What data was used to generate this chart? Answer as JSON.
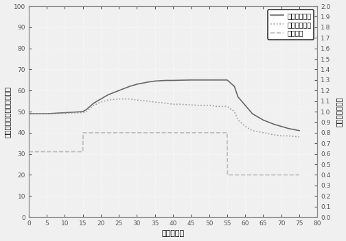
{
  "title": "",
  "xlabel": "时间（分）",
  "ylabel_left": "变压器绕组温度（摄氏度）",
  "ylabel_right": "负载系数变化率",
  "xlim": [
    0,
    80
  ],
  "ylim_left": [
    0,
    100
  ],
  "ylim_right": [
    0.0,
    2.0
  ],
  "xticks": [
    0,
    5,
    10,
    15,
    20,
    25,
    30,
    35,
    40,
    45,
    50,
    55,
    60,
    65,
    70,
    75,
    80
  ],
  "yticks_left": [
    0,
    10,
    20,
    30,
    40,
    50,
    60,
    70,
    80,
    90,
    100
  ],
  "yticks_right": [
    0.0,
    0.1,
    0.2,
    0.3,
    0.4,
    0.5,
    0.6,
    0.7,
    0.8,
    0.9,
    1.0,
    1.1,
    1.2,
    1.3,
    1.4,
    1.5,
    1.6,
    1.7,
    1.8,
    1.9,
    2.0
  ],
  "legend": [
    "传统控制方式",
    "新的控制方式",
    "负载系数"
  ],
  "line_traditional_x": [
    0,
    5,
    10,
    15,
    16,
    17,
    18,
    20,
    22,
    25,
    28,
    30,
    33,
    35,
    38,
    40,
    42,
    45,
    47,
    50,
    52,
    55,
    57,
    58,
    60,
    62,
    65,
    68,
    70,
    72,
    75
  ],
  "line_traditional_y": [
    49,
    49,
    49.5,
    50,
    51,
    52.5,
    54,
    56,
    58,
    60,
    62,
    63,
    64,
    64.5,
    64.8,
    64.8,
    64.9,
    65,
    65,
    65,
    65,
    65,
    62,
    57,
    53,
    49,
    46,
    44,
    43,
    42,
    41
  ],
  "line_new_x": [
    0,
    5,
    10,
    15,
    16,
    17,
    18,
    20,
    22,
    25,
    28,
    30,
    33,
    35,
    38,
    40,
    42,
    45,
    47,
    50,
    52,
    55,
    57,
    58,
    60,
    62,
    65,
    68,
    70,
    72,
    75
  ],
  "line_new_y": [
    49,
    49,
    49.2,
    49.5,
    50,
    51.5,
    53,
    54.5,
    55.5,
    56,
    56,
    55.5,
    55,
    54.5,
    54,
    53.5,
    53.5,
    53.2,
    53,
    53,
    52.5,
    52.5,
    50,
    46,
    43,
    41,
    40,
    39,
    38.5,
    38.5,
    38
  ],
  "line_load_x": [
    0,
    14.9,
    15.0,
    15.1,
    54.9,
    55.0,
    55.1,
    75
  ],
  "line_load_y": [
    31,
    31,
    31,
    40,
    40,
    40,
    20,
    20
  ],
  "color_traditional": "#666666",
  "color_new": "#999999",
  "color_load": "#bbbbbb",
  "bg_color": "#f0f0f0",
  "plot_bg": "#f0f0f0",
  "grid_color": "#ffffff",
  "spine_color": "#888888",
  "tick_color": "#555555",
  "figsize": [
    5.04,
    3.52
  ],
  "dpi": 100
}
